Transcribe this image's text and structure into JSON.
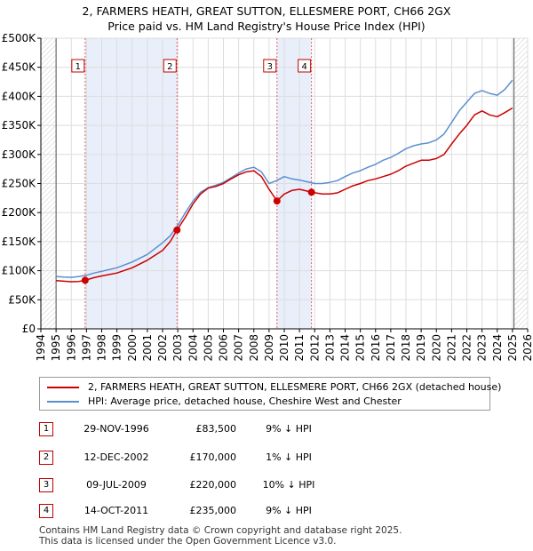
{
  "title_line1": "2, FARMERS HEATH, GREAT SUTTON, ELLESMERE PORT, CH66 2GX",
  "title_line2": "Price paid vs. HM Land Registry's House Price Index (HPI)",
  "chart_data": {
    "type": "line",
    "title": "2, FARMERS HEATH, GREAT SUTTON, ELLESMERE PORT, CH66 2GX — Price paid vs. HM Land Registry's House Price Index (HPI)",
    "xlabel": "",
    "ylabel": "",
    "xlim": [
      1994,
      2026
    ],
    "ylim": [
      0,
      500000
    ],
    "x_ticks": [
      1994,
      1995,
      1996,
      1997,
      1998,
      1999,
      2000,
      2001,
      2002,
      2003,
      2004,
      2005,
      2006,
      2007,
      2008,
      2009,
      2010,
      2011,
      2012,
      2013,
      2014,
      2015,
      2016,
      2017,
      2018,
      2019,
      2020,
      2021,
      2022,
      2023,
      2024,
      2025,
      2026
    ],
    "y_ticks": [
      0,
      50000,
      100000,
      150000,
      200000,
      250000,
      300000,
      350000,
      400000,
      450000,
      500000
    ],
    "y_tick_labels": [
      "£0",
      "£50K",
      "£100K",
      "£150K",
      "£200K",
      "£250K",
      "£300K",
      "£350K",
      "£400K",
      "£450K",
      "£500K"
    ],
    "grid": true,
    "shaded_periods": [
      [
        1996.91,
        2002.95
      ],
      [
        2009.52,
        2011.79
      ]
    ],
    "data_range_start": 1995.0,
    "data_range_end": 2025.1,
    "series": [
      {
        "name": "2, FARMERS HEATH, GREAT SUTTON, ELLESMERE PORT, CH66 2GX (detached house)",
        "color": "#cc0000",
        "x": [
          1995.0,
          1995.5,
          1996.0,
          1996.5,
          1996.91,
          1997.5,
          1998.0,
          1999.0,
          2000.0,
          2001.0,
          2002.0,
          2002.5,
          2002.95,
          2003.5,
          2004.0,
          2004.5,
          2005.0,
          2005.5,
          2006.0,
          2006.5,
          2007.0,
          2007.5,
          2008.0,
          2008.5,
          2009.0,
          2009.52,
          2010.0,
          2010.5,
          2011.0,
          2011.5,
          2011.79,
          2012.5,
          2013.0,
          2013.5,
          2014.0,
          2014.5,
          2015.0,
          2015.5,
          2016.0,
          2016.5,
          2017.0,
          2017.5,
          2018.0,
          2018.5,
          2019.0,
          2019.5,
          2020.0,
          2020.5,
          2021.0,
          2021.5,
          2022.0,
          2022.5,
          2023.0,
          2023.5,
          2024.0,
          2024.5,
          2025.0
        ],
        "values": [
          83000,
          82000,
          81000,
          81500,
          83500,
          88000,
          91000,
          96000,
          105000,
          118000,
          135000,
          150000,
          170000,
          192000,
          215000,
          232000,
          242000,
          245000,
          250000,
          258000,
          265000,
          270000,
          272000,
          262000,
          240000,
          220000,
          232000,
          238000,
          240000,
          237000,
          235000,
          232000,
          232000,
          234000,
          240000,
          246000,
          250000,
          255000,
          258000,
          262000,
          266000,
          272000,
          280000,
          285000,
          290000,
          290000,
          293000,
          300000,
          318000,
          335000,
          350000,
          368000,
          375000,
          368000,
          365000,
          372000,
          380000
        ]
      },
      {
        "name": "HPI: Average price, detached house, Cheshire West and Chester",
        "color": "#5b8fd1",
        "x": [
          1995.0,
          1995.5,
          1996.0,
          1996.5,
          1997.0,
          1997.5,
          1998.0,
          1999.0,
          2000.0,
          2001.0,
          2002.0,
          2002.5,
          2003.0,
          2003.5,
          2004.0,
          2004.5,
          2005.0,
          2005.5,
          2006.0,
          2006.5,
          2007.0,
          2007.5,
          2008.0,
          2008.5,
          2009.0,
          2009.5,
          2010.0,
          2010.5,
          2011.0,
          2011.5,
          2012.0,
          2012.5,
          2013.0,
          2013.5,
          2014.0,
          2014.5,
          2015.0,
          2015.5,
          2016.0,
          2016.5,
          2017.0,
          2017.5,
          2018.0,
          2018.5,
          2019.0,
          2019.5,
          2020.0,
          2020.5,
          2021.0,
          2021.5,
          2022.0,
          2022.5,
          2023.0,
          2023.5,
          2024.0,
          2024.5,
          2025.0
        ],
        "values": [
          90000,
          89000,
          88500,
          90000,
          92000,
          96000,
          99000,
          105000,
          115000,
          128000,
          148000,
          160000,
          178000,
          200000,
          220000,
          235000,
          243000,
          247000,
          252000,
          260000,
          268000,
          275000,
          278000,
          270000,
          250000,
          255000,
          262000,
          258000,
          256000,
          253000,
          250000,
          250000,
          252000,
          255000,
          262000,
          268000,
          272000,
          278000,
          283000,
          290000,
          295000,
          302000,
          310000,
          315000,
          318000,
          320000,
          325000,
          335000,
          355000,
          375000,
          390000,
          405000,
          410000,
          405000,
          402000,
          412000,
          428000
        ]
      }
    ],
    "sales": [
      {
        "label": "1",
        "x": 1996.91,
        "value": 83500
      },
      {
        "label": "2",
        "x": 2002.95,
        "value": 170000
      },
      {
        "label": "3",
        "x": 2009.52,
        "value": 220000
      },
      {
        "label": "4",
        "x": 2011.79,
        "value": 235000
      }
    ]
  },
  "legend": {
    "red_label": "2, FARMERS HEATH, GREAT SUTTON, ELLESMERE PORT, CH66 2GX (detached house)",
    "blue_label": "HPI: Average price, detached house, Cheshire West and Chester"
  },
  "sales_table": [
    {
      "num": "1",
      "date": "29-NOV-1996",
      "price": "£83,500",
      "hpi": "9% ↓ HPI"
    },
    {
      "num": "2",
      "date": "12-DEC-2002",
      "price": "£170,000",
      "hpi": "1% ↓ HPI"
    },
    {
      "num": "3",
      "date": "09-JUL-2009",
      "price": "£220,000",
      "hpi": "10% ↓ HPI"
    },
    {
      "num": "4",
      "date": "14-OCT-2011",
      "price": "£235,000",
      "hpi": "9% ↓ HPI"
    }
  ],
  "footer_line1": "Contains HM Land Registry data © Crown copyright and database right 2025.",
  "footer_line2": "This data is licensed under the Open Government Licence v3.0."
}
